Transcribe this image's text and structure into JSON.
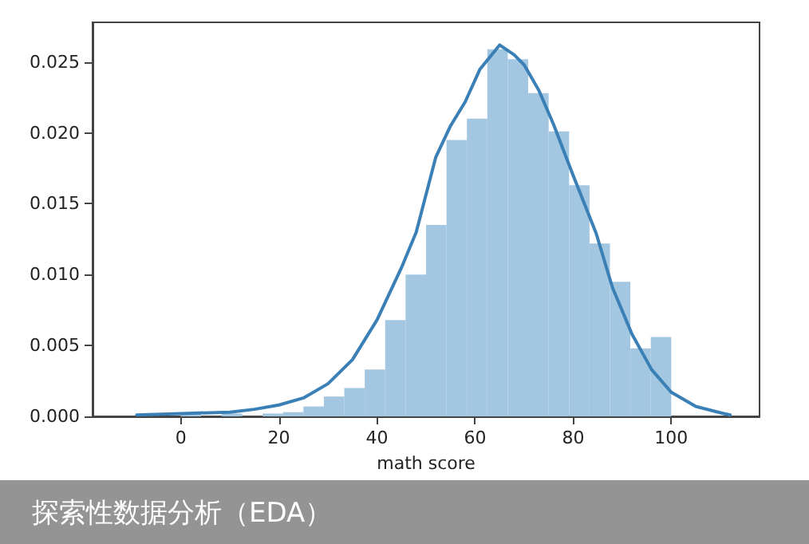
{
  "chart_data": {
    "type": "histogram",
    "xlabel": "math score",
    "annotations": [
      "探索性数据分析（EDA）"
    ],
    "xlim": [
      -18,
      118
    ],
    "xticks": [
      0,
      20,
      40,
      60,
      80,
      100
    ],
    "ylim": [
      0,
      0.0278
    ],
    "yticks": [
      {
        "value": 0,
        "label": "0.000"
      },
      {
        "value": 0.005,
        "label": "0.005"
      },
      {
        "value": 0.01,
        "label": "0.010"
      },
      {
        "value": 0.015,
        "label": "0.015"
      },
      {
        "value": 0.02,
        "label": "0.020"
      },
      {
        "value": 0.025,
        "label": "0.025"
      }
    ],
    "grid": false,
    "series": [
      {
        "color": "#a3c6e1",
        "bins": [
          0,
          4.17,
          8.33,
          12.5,
          16.67,
          20.83,
          25,
          29.17,
          33.33,
          37.5,
          41.67,
          45.83,
          50,
          54.17,
          58.33,
          62.5,
          66.67,
          70.83,
          75,
          79.17,
          83.33,
          87.5,
          91.67,
          95.83,
          100
        ],
        "values": [
          0.0002,
          0,
          0.0002,
          0,
          0.0002,
          0.0003,
          0.0007,
          0.0014,
          0.002,
          0.0033,
          0.0068,
          0.01,
          0.0135,
          0.0195,
          0.021,
          0.0259,
          0.0252,
          0.0228,
          0.0201,
          0.0163,
          0.0122,
          0.0095,
          0.0048,
          0.0056
        ]
      },
      {
        "type": "line",
        "color": "#3a7fb5",
        "marker": "none",
        "line_style": "solid",
        "x": [
          -9,
          0,
          10,
          15,
          20,
          25,
          30,
          35,
          40,
          45,
          48,
          52,
          55,
          58,
          61,
          65,
          68,
          70,
          73,
          76,
          80,
          84.7,
          88,
          92,
          96,
          100,
          105,
          110.7,
          112
        ],
        "values": [
          0.0001,
          0.0002,
          0.0003,
          0.0005,
          0.0008,
          0.0013,
          0.0023,
          0.004,
          0.0068,
          0.0105,
          0.013,
          0.0183,
          0.0205,
          0.0222,
          0.0245,
          0.0262,
          0.0255,
          0.0248,
          0.023,
          0.0206,
          0.017,
          0.0129,
          0.0091,
          0.0058,
          0.0033,
          0.0017,
          0.0007,
          0.0002,
          0.0001
        ]
      }
    ]
  }
}
